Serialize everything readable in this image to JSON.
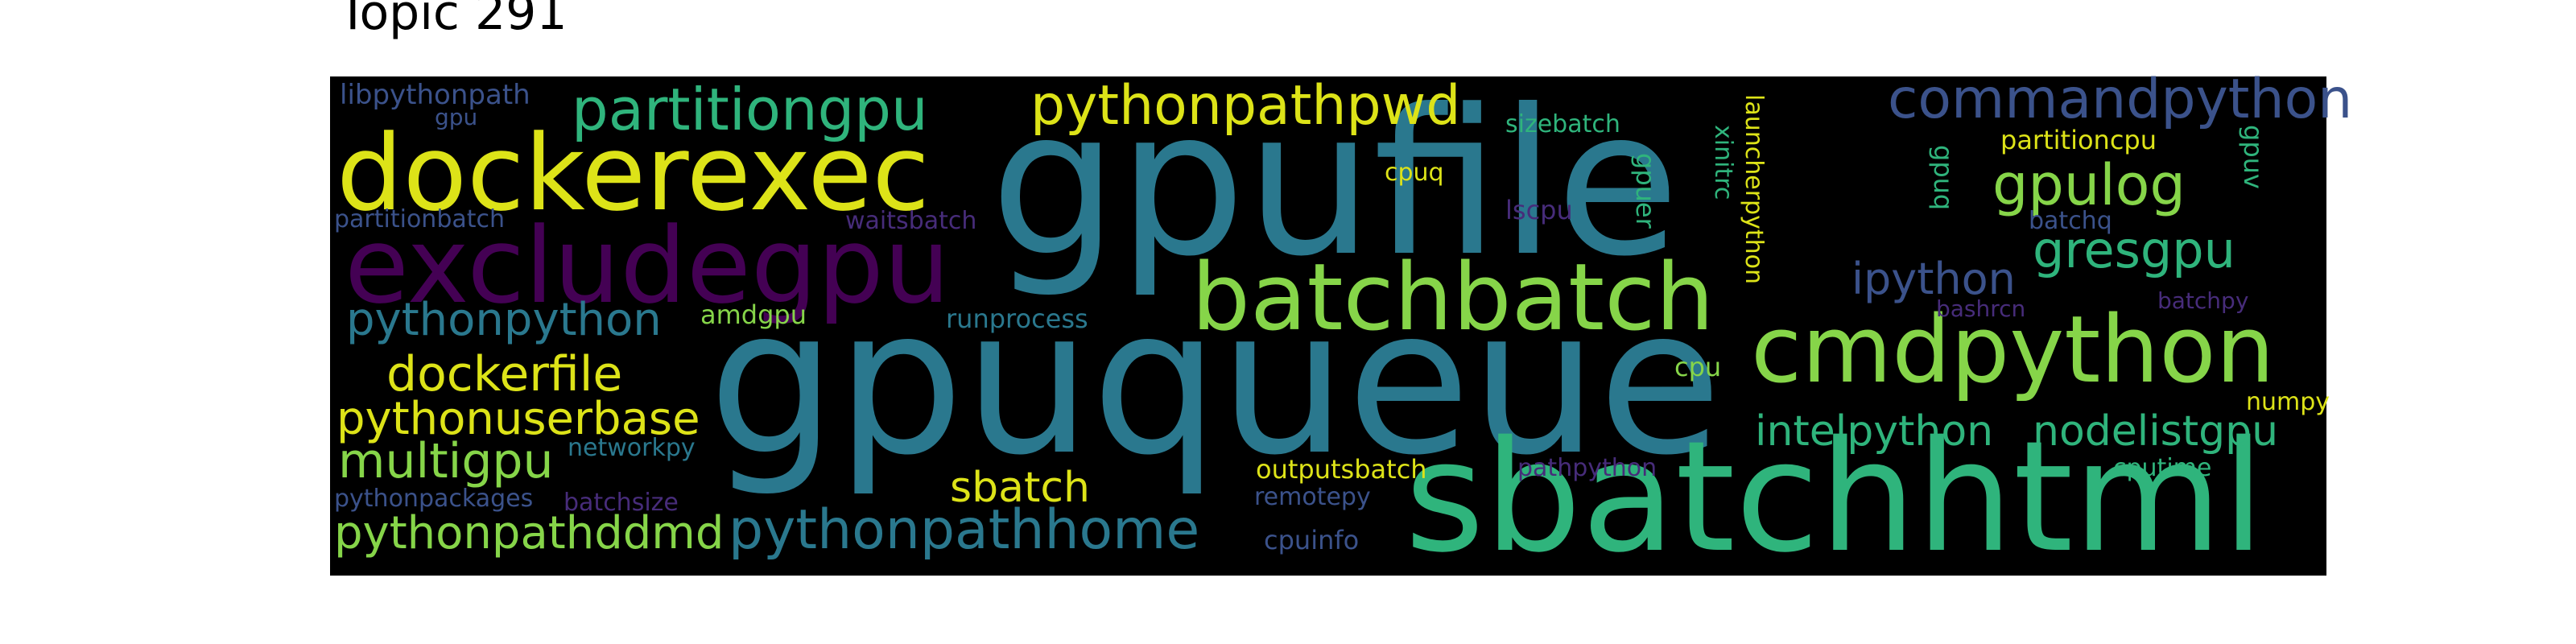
{
  "title": "Topic 291",
  "colors": {
    "yellow": "#dde318",
    "lime": "#86d549",
    "green": "#2fb47c",
    "teal": "#2a788e",
    "purple": "#440154",
    "indigo": "#3b528b",
    "violet": "#472c7a"
  },
  "words": {
    "gpufile": "gpufile",
    "gpuqueue": "gpuqueue",
    "sbatchhtml": "sbatchhtml",
    "dockerexec": "dockerexec",
    "excludegpu": "excludegpu",
    "batchbatch": "batchbatch",
    "cmdpython": "cmdpython",
    "partitiongpu": "partitiongpu",
    "pythonpathpwd": "pythonpathpwd",
    "commandpython": "commandpython",
    "pythonpathhome": "pythonpathhome",
    "pythonpathddmd": "pythonpathddmd",
    "dockerfile": "dockerfile",
    "pythonuserbase": "pythonuserbase",
    "multigpu": "multigpu",
    "pythonpython": "pythonpython",
    "intelpython": "intelpython",
    "nodelistgpu": "nodelistgpu",
    "gpulog": "gpulog",
    "gresgpu": "gresgpu",
    "ipython": "ipython",
    "sbatch": "sbatch",
    "libpythonpath": "libpythonpath",
    "gpu": "gpu",
    "partitionbatch": "partitionbatch",
    "waitsbatch": "waitsbatch",
    "amdgpu": "amdgpu",
    "runprocess": "runprocess",
    "networkpy": "networkpy",
    "pythonpackages": "pythonpackages",
    "batchsize": "batchsize",
    "sizebatch": "sizebatch",
    "cpuq": "cpuq",
    "lscpu": "lscpu",
    "gpuer": "gpuer",
    "xinitrc": "xinitrc",
    "launcherpython": "launcherpython",
    "gpuq": "gpuq",
    "partitioncpu": "partitioncpu",
    "batchq": "batchq",
    "gpuv": "gpuv",
    "bashrcn": "bashrcn",
    "batchpy": "batchpy",
    "cpu": "cpu",
    "numpy": "numpy",
    "outputsbatch": "outputsbatch",
    "remotepy": "remotepy",
    "pathpython": "pathpython",
    "cputime": "cputime",
    "cpuinfo": "cpuinfo"
  }
}
